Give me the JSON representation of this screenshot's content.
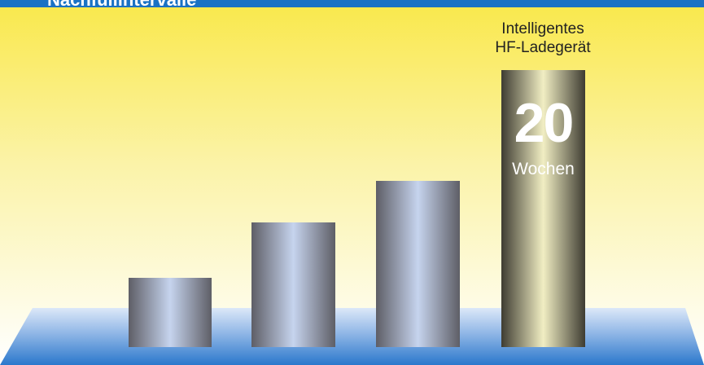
{
  "title": "Nachfüllintervalle",
  "chart_data": {
    "type": "bar",
    "categories": [
      "",
      "",
      "",
      "Intelligentes HF-Ladegerät"
    ],
    "values": [
      5,
      9,
      12,
      20
    ],
    "highlight_index": 3,
    "highlight_label_lines": [
      "Intelligentes",
      "HF-Ladegerät"
    ],
    "highlight_value_text": "20",
    "unit": "Wochen",
    "ylim": [
      0,
      21
    ],
    "grid": false,
    "legend": "none"
  },
  "colors": {
    "header_blue": "#1a72c4",
    "sky_top": "#f9e84a",
    "sky_bottom": "#ffffff",
    "floor_light": "#dce8f8",
    "floor_dark": "#2b78cc",
    "bar_grey_edge": "#5e5e66",
    "bar_grey_center": "#c6d4ee",
    "bar_gold_edge": "#3e3c32",
    "bar_gold_center": "#f1eec3"
  }
}
